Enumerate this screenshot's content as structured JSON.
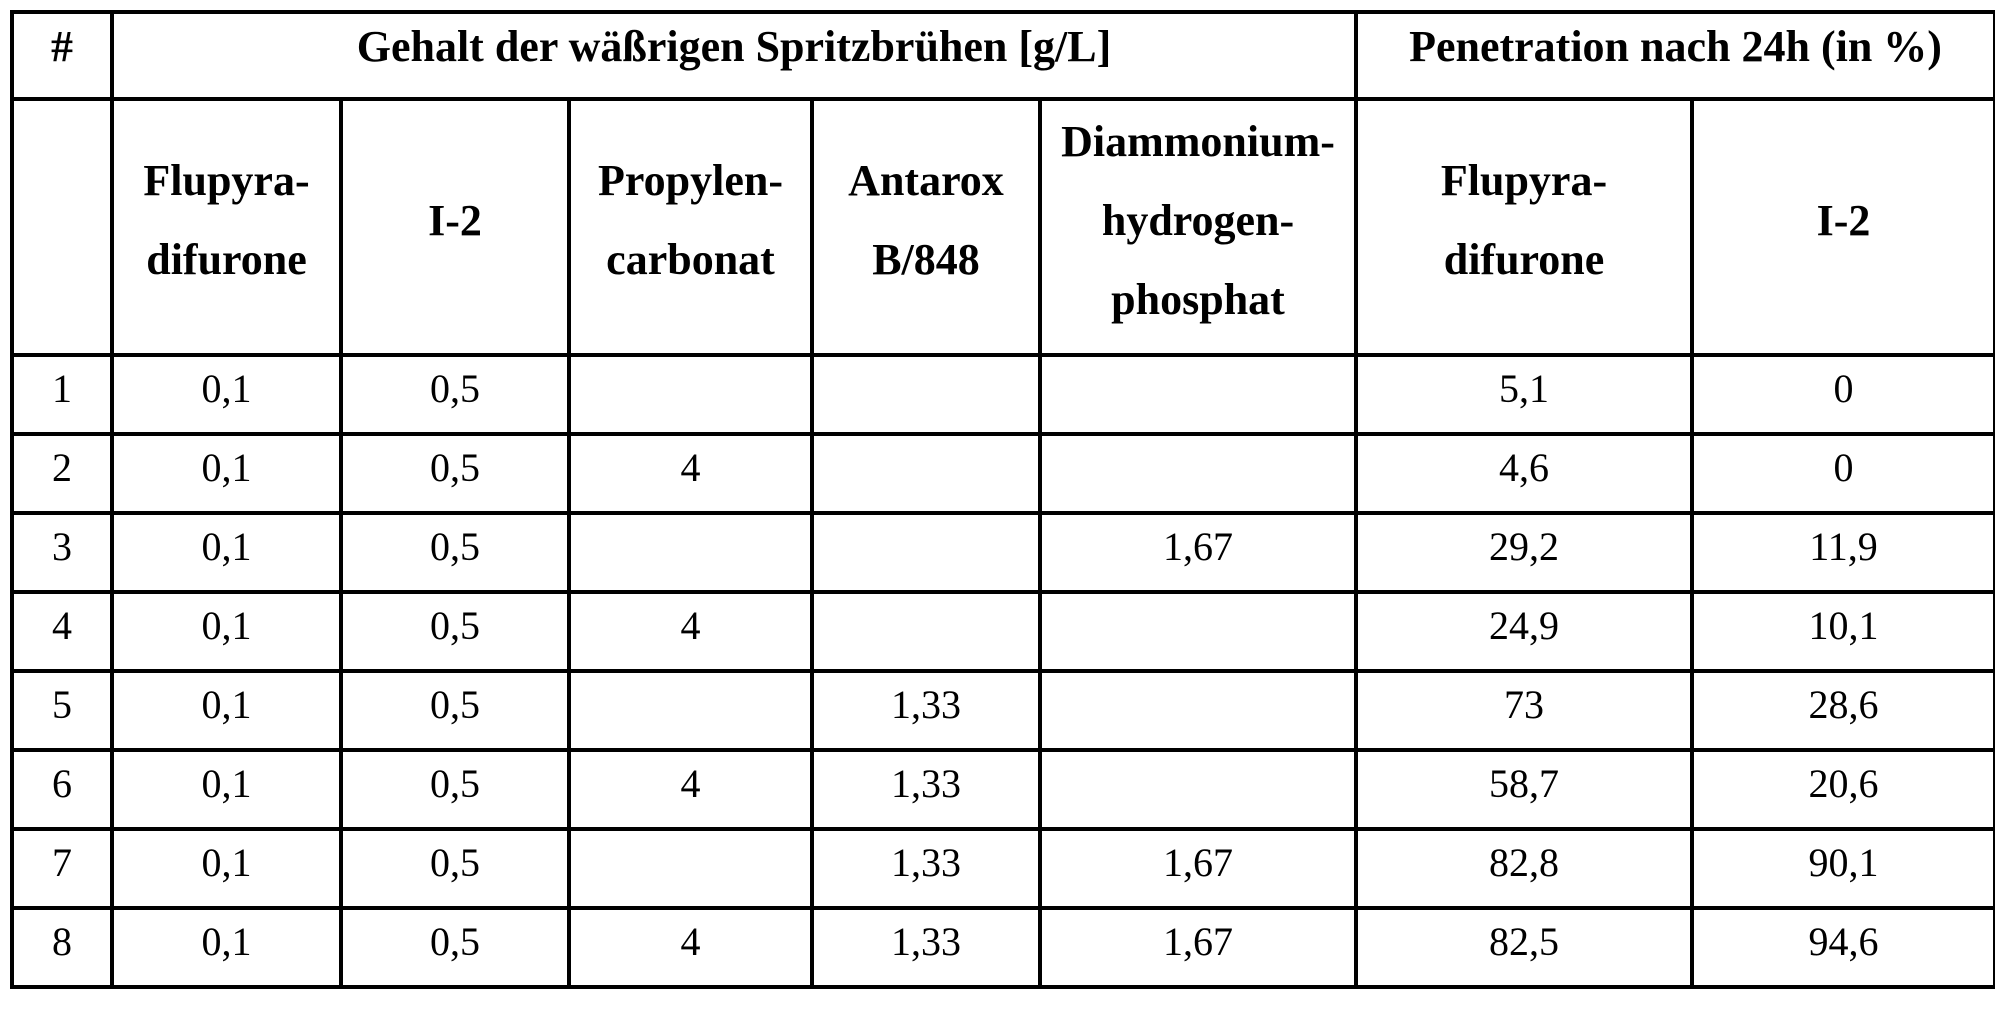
{
  "table": {
    "header_top": {
      "index_label": "#",
      "group_content_label": "Gehalt der wäßrigen Spritzbrühen [g/L]",
      "group_penetration_label": "Penetration nach 24h (in %)"
    },
    "header_sub": [
      {
        "key": "index",
        "lines": [
          ""
        ]
      },
      {
        "key": "flupyradifurone_content",
        "lines": [
          "Flupyra-",
          "difurone"
        ]
      },
      {
        "key": "i2_content",
        "lines": [
          "I-2"
        ]
      },
      {
        "key": "propylencarbonat",
        "lines": [
          "Propylen-",
          "carbonat"
        ]
      },
      {
        "key": "antarox",
        "lines": [
          "Antarox",
          "B/848"
        ]
      },
      {
        "key": "diammonium",
        "lines": [
          "Diammonium-",
          "hydrogen-",
          "phosphat"
        ]
      },
      {
        "key": "flupyradifurone_penetration",
        "lines": [
          "Flupyra-",
          "difurone"
        ]
      },
      {
        "key": "i2_penetration",
        "lines": [
          "I-2"
        ]
      }
    ],
    "rows": [
      [
        "1",
        "0,1",
        "0,5",
        "",
        "",
        "",
        "5,1",
        "0"
      ],
      [
        "2",
        "0,1",
        "0,5",
        "4",
        "",
        "",
        "4,6",
        "0"
      ],
      [
        "3",
        "0,1",
        "0,5",
        "",
        "",
        "1,67",
        "29,2",
        "11,9"
      ],
      [
        "4",
        "0,1",
        "0,5",
        "4",
        "",
        "",
        "24,9",
        "10,1"
      ],
      [
        "5",
        "0,1",
        "0,5",
        "",
        "1,33",
        "",
        "73",
        "28,6"
      ],
      [
        "6",
        "0,1",
        "0,5",
        "4",
        "1,33",
        "",
        "58,7",
        "20,6"
      ],
      [
        "7",
        "0,1",
        "0,5",
        "",
        "1,33",
        "1,67",
        "82,8",
        "90,1"
      ],
      [
        "8",
        "0,1",
        "0,5",
        "4",
        "1,33",
        "1,67",
        "82,5",
        "94,6"
      ]
    ]
  }
}
